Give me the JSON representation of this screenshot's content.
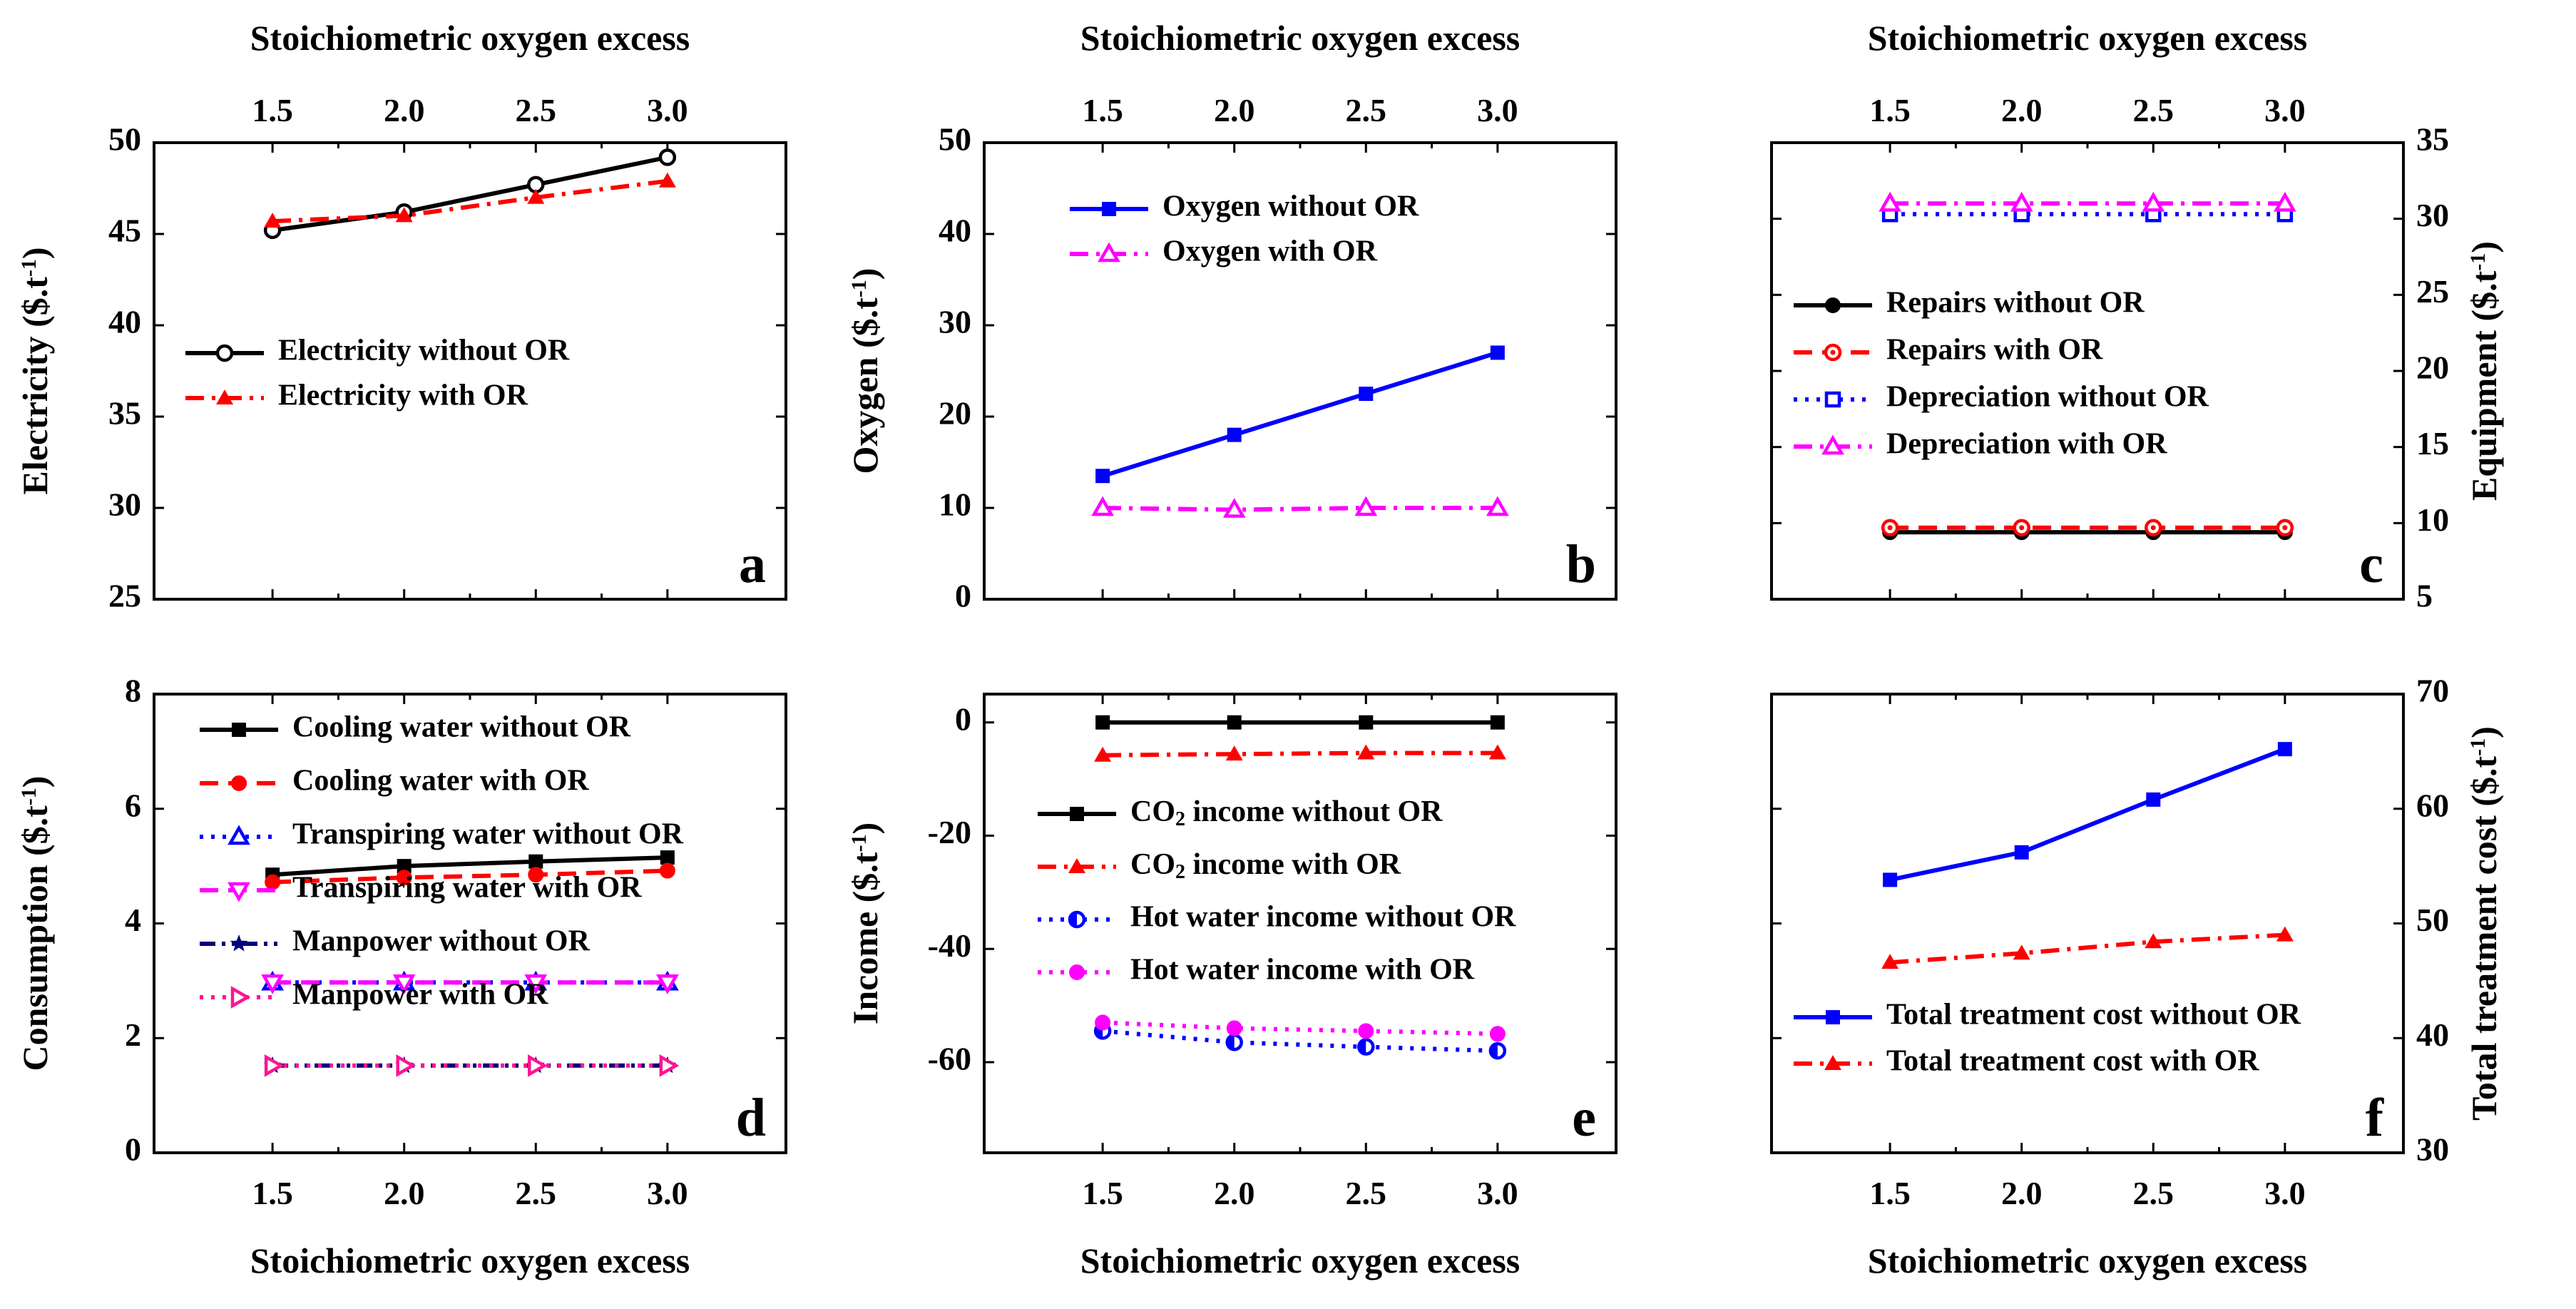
{
  "figure": {
    "panels": [
      "a",
      "b",
      "c",
      "d",
      "e",
      "f"
    ]
  },
  "chart_data": [
    {
      "id": "a",
      "type": "line",
      "panel_letter": "a",
      "top_axis_label": "Stoichiometric oxygen excess",
      "xlabel": "",
      "ylabel": "Electricity  ($.t-1)",
      "x": [
        1.5,
        2.0,
        2.5,
        3.0
      ],
      "x_ticks": [
        "1.5",
        "2.0",
        "2.5",
        "3.0"
      ],
      "xlim": [
        1.05,
        3.45
      ],
      "ylim": [
        25,
        50
      ],
      "y_ticks": [
        25,
        30,
        35,
        40,
        45,
        50
      ],
      "legend_position": "left-middle",
      "series": [
        {
          "name": "Electricity without OR",
          "values": [
            45.2,
            46.2,
            47.7,
            49.2
          ],
          "color": "#000000",
          "dash": "solid",
          "marker": "circle-open"
        },
        {
          "name": "Electricity with OR",
          "values": [
            45.7,
            46.0,
            47.0,
            47.9
          ],
          "color": "#ff0000",
          "dash": "dashdot",
          "marker": "triangle-filled"
        }
      ]
    },
    {
      "id": "b",
      "type": "line",
      "panel_letter": "b",
      "top_axis_label": "Stoichiometric oxygen excess",
      "xlabel": "",
      "ylabel": "Oxygen  ($.t-1)",
      "x": [
        1.5,
        2.0,
        2.5,
        3.0
      ],
      "x_ticks": [
        "1.5",
        "2.0",
        "2.5",
        "3.0"
      ],
      "xlim": [
        1.05,
        3.45
      ],
      "ylim": [
        0,
        50
      ],
      "y_ticks": [
        0,
        10,
        20,
        30,
        40,
        50
      ],
      "legend_position": "top-left",
      "series": [
        {
          "name": "Oxygen without OR",
          "values": [
            13.5,
            18.0,
            22.5,
            27.0
          ],
          "color": "#0000ff",
          "dash": "solid",
          "marker": "square-filled"
        },
        {
          "name": "Oxygen with OR",
          "values": [
            10.0,
            9.8,
            10.0,
            10.0
          ],
          "color": "#ff00ff",
          "dash": "dashdot",
          "marker": "triangle-open"
        }
      ]
    },
    {
      "id": "c",
      "type": "line",
      "panel_letter": "c",
      "top_axis_label": "Stoichiometric oxygen excess",
      "xlabel": "",
      "ylabel": "Equipment  ($.t-1)",
      "y_axis_side": "right",
      "x": [
        1.5,
        2.0,
        2.5,
        3.0
      ],
      "x_ticks": [
        "1.5",
        "2.0",
        "2.5",
        "3.0"
      ],
      "xlim": [
        1.05,
        3.45
      ],
      "ylim": [
        5,
        35
      ],
      "y_ticks": [
        5,
        10,
        15,
        20,
        25,
        30,
        35
      ],
      "legend_position": "left-middle",
      "series": [
        {
          "name": "Repairs without OR",
          "values": [
            9.4,
            9.4,
            9.4,
            9.4
          ],
          "color": "#000000",
          "dash": "solid",
          "marker": "circle-filled"
        },
        {
          "name": "Repairs with OR",
          "values": [
            9.7,
            9.7,
            9.7,
            9.7
          ],
          "color": "#ff0000",
          "dash": "dashed",
          "marker": "circle-open-dot"
        },
        {
          "name": "Depreciation without OR",
          "values": [
            30.3,
            30.3,
            30.3,
            30.3
          ],
          "color": "#0000ff",
          "dash": "dotted",
          "marker": "square-open"
        },
        {
          "name": "Depreciation with OR",
          "values": [
            31.0,
            31.0,
            31.0,
            31.0
          ],
          "color": "#ff00ff",
          "dash": "dashdot",
          "marker": "triangle-open"
        }
      ]
    },
    {
      "id": "d",
      "type": "line",
      "panel_letter": "d",
      "xlabel": "Stoichiometric oxygen excess",
      "ylabel": "Consumption  ($.t-1)",
      "x": [
        1.5,
        2.0,
        2.5,
        3.0
      ],
      "x_ticks": [
        "1.5",
        "2.0",
        "2.5",
        "3.0"
      ],
      "xlim": [
        1.05,
        3.45
      ],
      "ylim": [
        0,
        8
      ],
      "y_ticks": [
        0,
        2,
        4,
        6,
        8
      ],
      "legend_position": "left",
      "series": [
        {
          "name": "Cooling water without OR",
          "values": [
            4.85,
            5.0,
            5.08,
            5.15
          ],
          "color": "#000000",
          "dash": "solid",
          "marker": "square-filled"
        },
        {
          "name": "Cooling water with OR",
          "values": [
            4.72,
            4.8,
            4.85,
            4.92
          ],
          "color": "#ff0000",
          "dash": "dashed",
          "marker": "circle-filled"
        },
        {
          "name": "Transpiring water without OR",
          "values": [
            2.97,
            2.97,
            2.97,
            2.97
          ],
          "color": "#0000ff",
          "dash": "dotted",
          "marker": "triangle-open"
        },
        {
          "name": "Transpiring water with OR",
          "values": [
            2.97,
            2.97,
            2.97,
            2.97
          ],
          "color": "#ff00ff",
          "dash": "dashed",
          "marker": "triangle-down-open"
        },
        {
          "name": "Manpower without OR",
          "values": [
            1.52,
            1.52,
            1.52,
            1.52
          ],
          "color": "#000080",
          "dash": "dashdotdot",
          "marker": "star"
        },
        {
          "name": "Manpower with OR",
          "values": [
            1.52,
            1.52,
            1.52,
            1.52
          ],
          "color": "#ff1493",
          "dash": "dotted",
          "marker": "triangle-right-open"
        }
      ]
    },
    {
      "id": "e",
      "type": "line",
      "panel_letter": "e",
      "xlabel": "Stoichiometric oxygen excess",
      "ylabel": "Income  ($.t-1)",
      "x": [
        1.5,
        2.0,
        2.5,
        3.0
      ],
      "x_ticks": [
        "1.5",
        "2.0",
        "2.5",
        "3.0"
      ],
      "xlim": [
        1.05,
        3.45
      ],
      "ylim": [
        -76,
        5
      ],
      "y_ticks": [
        -60,
        -40,
        -20,
        0
      ],
      "legend_position": "left-middle",
      "series": [
        {
          "name": "CO2 income without OR",
          "values": [
            0,
            0,
            0,
            0
          ],
          "color": "#000000",
          "dash": "solid",
          "marker": "square-filled"
        },
        {
          "name": "CO2 income  with OR",
          "values": [
            -5.8,
            -5.6,
            -5.4,
            -5.4
          ],
          "color": "#ff0000",
          "dash": "dashdot",
          "marker": "triangle-filled"
        },
        {
          "name": "Hot water income without OR",
          "values": [
            -54.5,
            -56.5,
            -57.3,
            -58.0
          ],
          "color": "#0000ff",
          "dash": "dotted",
          "marker": "circle-half"
        },
        {
          "name": "Hot water income with OR",
          "values": [
            -53.0,
            -54.0,
            -54.5,
            -55.0
          ],
          "color": "#ff00ff",
          "dash": "dotted",
          "marker": "circle-filled"
        }
      ]
    },
    {
      "id": "f",
      "type": "line",
      "panel_letter": "f",
      "xlabel": "Stoichiometric oxygen excess",
      "ylabel": "Total treatment cost  ($.t-1)",
      "y_axis_side": "right",
      "x": [
        1.5,
        2.0,
        2.5,
        3.0
      ],
      "x_ticks": [
        "1.5",
        "2.0",
        "2.5",
        "3.0"
      ],
      "xlim": [
        1.05,
        3.45
      ],
      "ylim": [
        30,
        70
      ],
      "y_ticks": [
        30,
        40,
        50,
        60,
        70
      ],
      "legend_position": "bottom-left",
      "series": [
        {
          "name": "Total treatment cost without OR",
          "values": [
            53.8,
            56.2,
            60.8,
            65.2
          ],
          "color": "#0000ff",
          "dash": "solid",
          "marker": "square-filled"
        },
        {
          "name": "Total treatment cost with OR",
          "values": [
            46.6,
            47.4,
            48.4,
            49.0
          ],
          "color": "#ff0000",
          "dash": "dashdot",
          "marker": "triangle-filled"
        }
      ]
    }
  ]
}
